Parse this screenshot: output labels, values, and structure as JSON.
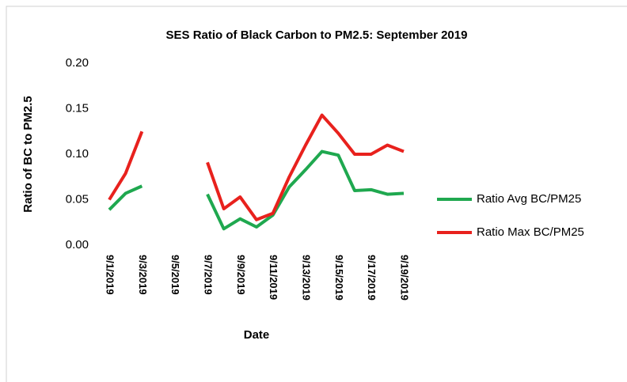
{
  "chart_data": {
    "type": "line",
    "title": "SES Ratio of Black Carbon to PM2.5: September 2019",
    "x_label": "Date",
    "y_label": "Ratio of BC to PM2.5",
    "categories": [
      "9/1/2019",
      null,
      "9/3/2019",
      null,
      "9/5/2019",
      null,
      "9/7/2019",
      null,
      "9/9/2019",
      null,
      "9/11/2019",
      null,
      "9/13/2019",
      null,
      "9/15/2019",
      null,
      "9/17/2019",
      null,
      "9/19/2019"
    ],
    "series": [
      {
        "name": "Ratio Avg BC/PM25",
        "color": "#1fa84f",
        "values": [
          0.039,
          0.057,
          0.065,
          null,
          null,
          null,
          0.056,
          0.018,
          0.029,
          0.02,
          0.033,
          0.064,
          0.083,
          0.103,
          0.099,
          0.06,
          0.061,
          0.056,
          0.057
        ]
      },
      {
        "name": "Ratio Max BC/PM25",
        "color": "#e8211d",
        "values": [
          0.05,
          0.079,
          0.125,
          null,
          null,
          null,
          0.091,
          0.04,
          0.053,
          0.028,
          0.035,
          0.075,
          0.11,
          0.143,
          0.123,
          0.1,
          0.1,
          0.11,
          0.103
        ]
      }
    ],
    "ylim": [
      0,
      0.2
    ],
    "yticks": [
      {
        "value": 0,
        "label": "0.00"
      },
      {
        "value": 0.05,
        "label": "0.05"
      },
      {
        "value": 0.1,
        "label": "0.10"
      },
      {
        "value": 0.15,
        "label": "0.15"
      },
      {
        "value": 0.2,
        "label": "0.20"
      }
    ],
    "legend": "right"
  }
}
